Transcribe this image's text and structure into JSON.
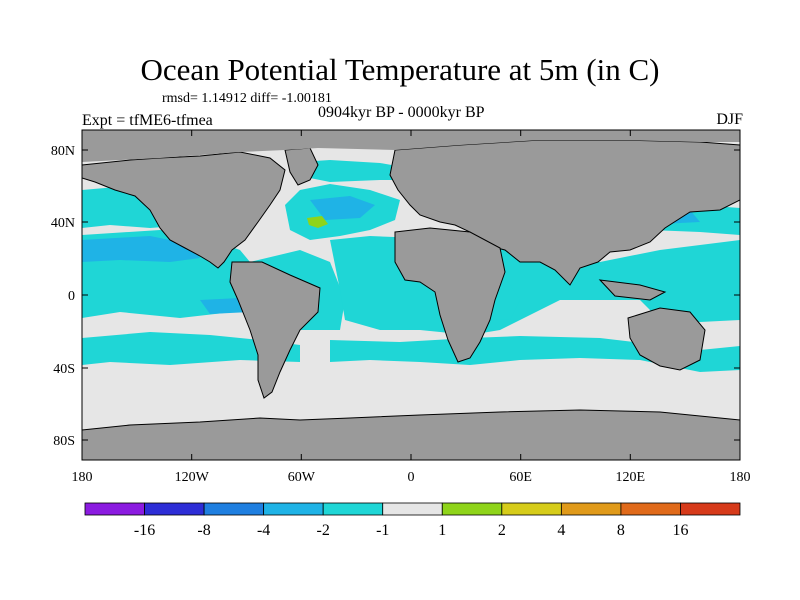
{
  "title": "Ocean Potential Temperature at 5m (in C)",
  "stats": "rmsd= 1.14912 diff= -1.00181",
  "experiment": "Expt = tfME6-tfmea",
  "period": "0904kyr BP - 0000kyr BP",
  "season": "DJF",
  "axes": {
    "lat_ticks": [
      "80N",
      "40N",
      "0",
      "40S",
      "80S"
    ],
    "lon_ticks": [
      "180",
      "120W",
      "60W",
      "0",
      "60E",
      "120E",
      "180"
    ]
  },
  "colorbar": {
    "colors": [
      "#8b1be0",
      "#2d2dd6",
      "#1f7fe0",
      "#1fb3e6",
      "#1fd6d6",
      "#e6e6e6",
      "#8fd41a",
      "#d6cc1a",
      "#e09a1a",
      "#e06a1a",
      "#d63a1a"
    ],
    "labels": [
      "-16",
      "-8",
      "-4",
      "-2",
      "-1",
      "1",
      "2",
      "4",
      "8",
      "16"
    ]
  },
  "map_colors": {
    "land": "#9a9a9a",
    "near_zero": "#e6e6e6",
    "cool": "#1fd6d6",
    "cooler": "#1fb3e6",
    "warm": "#8fd41a"
  }
}
